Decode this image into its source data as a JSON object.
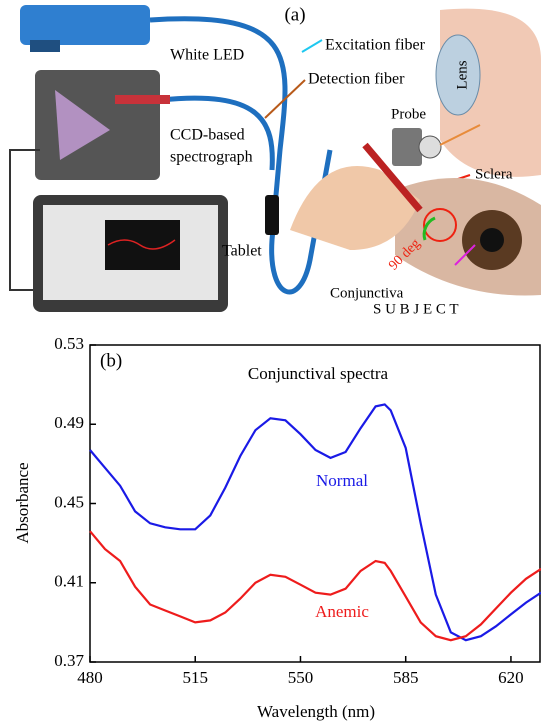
{
  "panel_a": {
    "label": "(a)",
    "white_led": "White LED",
    "excitation_fiber": "Excitation fiber",
    "detection_fiber": "Detection fiber",
    "spectrograph": [
      "CCD-based",
      "spectrograph"
    ],
    "probe": "Probe",
    "lens": "Lens",
    "sclera": "Sclera",
    "tablet": "Tablet",
    "angle": "90 deg",
    "conjunctiva": "Conjunctiva",
    "subject": "S U B J E C T"
  },
  "chart_data": {
    "type": "line",
    "panel_label": "(b)",
    "title": "Conjunctival spectra",
    "x_label": "Wavelength (nm)",
    "y_label": "Absorbance",
    "x": [
      480,
      485,
      490,
      495,
      500,
      505,
      510,
      515,
      520,
      525,
      530,
      535,
      540,
      545,
      550,
      555,
      560,
      565,
      570,
      575,
      578,
      580,
      585,
      590,
      595,
      600,
      605,
      610,
      615,
      620,
      625,
      630
    ],
    "series": [
      {
        "name": "Normal",
        "color": "#1a1ae6",
        "values": [
          0.477,
          0.468,
          0.459,
          0.446,
          0.44,
          0.438,
          0.437,
          0.437,
          0.444,
          0.458,
          0.474,
          0.487,
          0.493,
          0.492,
          0.485,
          0.477,
          0.473,
          0.476,
          0.488,
          0.499,
          0.5,
          0.497,
          0.478,
          0.44,
          0.404,
          0.385,
          0.381,
          0.383,
          0.388,
          0.394,
          0.4,
          0.405
        ]
      },
      {
        "name": "Anemic",
        "color": "#ee1c1c",
        "values": [
          0.436,
          0.427,
          0.421,
          0.408,
          0.399,
          0.396,
          0.393,
          0.39,
          0.391,
          0.395,
          0.402,
          0.41,
          0.414,
          0.413,
          0.409,
          0.405,
          0.404,
          0.407,
          0.416,
          0.421,
          0.42,
          0.416,
          0.403,
          0.39,
          0.383,
          0.381,
          0.383,
          0.389,
          0.397,
          0.405,
          0.412,
          0.417
        ]
      }
    ],
    "xlim": [
      480,
      630
    ],
    "ylim": [
      0.37,
      0.53
    ],
    "xticks": [
      480,
      515,
      550,
      585,
      620
    ],
    "yticks": [
      0.37,
      0.41,
      0.45,
      0.49,
      0.53
    ]
  }
}
